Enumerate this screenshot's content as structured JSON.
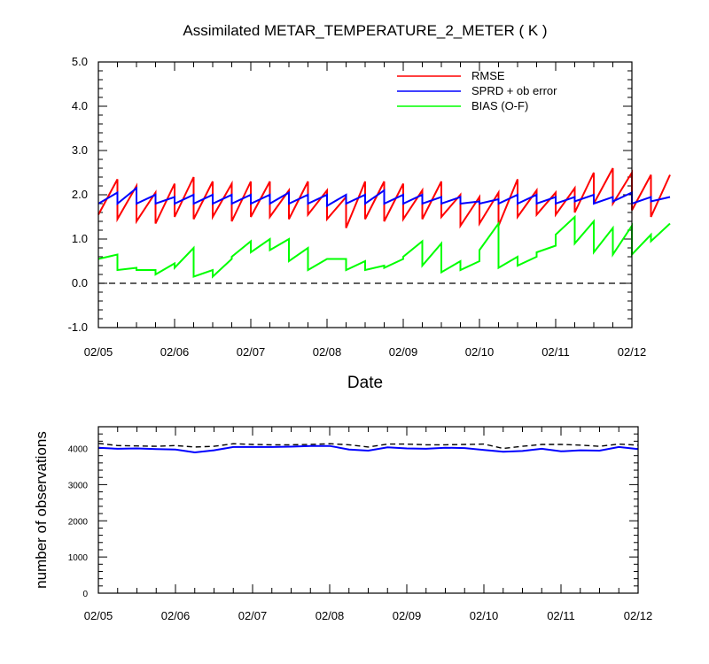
{
  "chart_data": [
    {
      "type": "line",
      "title": "Assimilated METAR_TEMPERATURE_2_METER ( K )",
      "xlabel": "Date",
      "ylabel": "",
      "x_ticklabels": [
        "02/05",
        "02/06",
        "02/07",
        "02/08",
        "02/09",
        "02/10",
        "02/11",
        "02/12"
      ],
      "xlim": [
        0,
        7
      ],
      "ylim": [
        -1.0,
        5.0
      ],
      "y_ticks": [
        -1.0,
        0.0,
        1.0,
        2.0,
        3.0,
        4.0,
        5.0
      ],
      "y_ticklabels": [
        "-1.0",
        "0.0",
        "1.0",
        "2.0",
        "3.0",
        "4.0",
        "5.0"
      ],
      "reference_line": {
        "y": 0.0,
        "style": "dashed"
      },
      "legend_position": "top-right",
      "cycle_days": 0.25,
      "series": [
        {
          "name": "RMSE",
          "color": "#ff0000",
          "prior": [
            1.55,
            1.45,
            1.4,
            1.35,
            1.5,
            1.45,
            1.5,
            1.4,
            1.5,
            1.5,
            1.45,
            1.55,
            1.45,
            1.25,
            1.45,
            1.4,
            1.45,
            1.45,
            1.5,
            1.3,
            1.35,
            1.3,
            1.5,
            1.55,
            1.55,
            1.6,
            1.8,
            1.8,
            1.65,
            1.5
          ],
          "posterior": [
            2.35,
            2.2,
            2.05,
            2.25,
            2.4,
            2.3,
            2.25,
            2.3,
            2.3,
            2.1,
            2.3,
            2.1,
            1.95,
            2.3,
            2.3,
            2.25,
            2.1,
            2.3,
            2.0,
            1.95,
            2.05,
            2.35,
            2.1,
            2.05,
            2.15,
            2.5,
            2.6,
            2.5,
            2.45,
            2.45
          ]
        },
        {
          "name": "SPRD + ob error",
          "color": "#0000ff",
          "prior": [
            1.8,
            1.8,
            1.8,
            1.8,
            1.8,
            1.8,
            1.8,
            1.8,
            1.8,
            1.8,
            1.8,
            1.8,
            1.75,
            1.8,
            1.8,
            1.8,
            1.8,
            1.8,
            1.8,
            1.8,
            1.8,
            1.8,
            1.8,
            1.8,
            1.8,
            1.85,
            1.8,
            1.85,
            1.8,
            1.85
          ],
          "posterior": [
            2.05,
            2.15,
            2.0,
            1.95,
            2.0,
            2.0,
            2.0,
            2.0,
            2.0,
            2.05,
            2.0,
            2.0,
            2.0,
            2.0,
            2.1,
            2.0,
            2.0,
            1.95,
            1.95,
            1.85,
            1.9,
            2.0,
            2.0,
            1.95,
            1.95,
            2.0,
            1.95,
            2.05,
            1.95,
            1.95
          ]
        },
        {
          "name": "BIAS (O-F)",
          "color": "#00ff00",
          "prior": [
            0.55,
            0.3,
            0.3,
            0.2,
            0.35,
            0.15,
            0.15,
            0.6,
            0.7,
            0.75,
            0.5,
            0.3,
            0.55,
            0.3,
            0.3,
            0.35,
            0.6,
            0.4,
            0.25,
            0.3,
            0.75,
            0.35,
            0.4,
            0.7,
            1.1,
            0.9,
            0.7,
            0.65,
            0.65,
            0.95
          ],
          "posterior": [
            0.65,
            0.35,
            0.3,
            0.45,
            0.8,
            0.3,
            0.55,
            0.95,
            1.0,
            1.0,
            0.8,
            0.55,
            0.55,
            0.5,
            0.4,
            0.55,
            0.95,
            0.9,
            0.5,
            0.5,
            1.35,
            0.6,
            0.6,
            0.85,
            1.5,
            1.4,
            1.25,
            1.3,
            1.1,
            1.35
          ]
        }
      ]
    },
    {
      "type": "line",
      "title": "",
      "xlabel": "",
      "ylabel": "number of observations",
      "x_ticklabels": [
        "02/05",
        "02/06",
        "02/07",
        "02/08",
        "02/09",
        "02/10",
        "02/11",
        "02/12"
      ],
      "xlim": [
        0,
        7
      ],
      "ylim": [
        0,
        4600
      ],
      "y_ticks": [
        0,
        1000,
        2000,
        3000,
        4000
      ],
      "y_ticklabels": [
        "0",
        "1000",
        "2000",
        "3000",
        "4000"
      ],
      "series": [
        {
          "name": "",
          "color": "#000000",
          "style": "dashed",
          "x": [
            0,
            0.25,
            0.5,
            0.75,
            1,
            1.25,
            1.5,
            1.75,
            2,
            2.25,
            2.5,
            2.75,
            3,
            3.25,
            3.5,
            3.75,
            4,
            4.25,
            4.5,
            4.75,
            5,
            5.25,
            5.5,
            5.75,
            6,
            6.25,
            6.5,
            6.75,
            7
          ],
          "values": [
            4140,
            4080,
            4070,
            4060,
            4080,
            4040,
            4060,
            4130,
            4110,
            4100,
            4100,
            4110,
            4130,
            4100,
            4040,
            4120,
            4120,
            4100,
            4100,
            4110,
            4120,
            4000,
            4060,
            4110,
            4110,
            4090,
            4060,
            4120,
            4090
          ]
        },
        {
          "name": "",
          "color": "#0000ff",
          "style": "solid",
          "x": [
            0,
            0.25,
            0.5,
            0.75,
            1,
            1.25,
            1.5,
            1.75,
            2,
            2.25,
            2.5,
            2.75,
            3,
            3.25,
            3.5,
            3.75,
            4,
            4.25,
            4.5,
            4.75,
            5,
            5.25,
            5.5,
            5.75,
            6,
            6.25,
            6.5,
            6.75,
            7
          ],
          "values": [
            4020,
            3990,
            4000,
            3980,
            3970,
            3890,
            3950,
            4040,
            4040,
            4040,
            4050,
            4070,
            4070,
            3970,
            3940,
            4030,
            4000,
            3990,
            4020,
            4010,
            3960,
            3910,
            3930,
            3990,
            3920,
            3950,
            3940,
            4040,
            3980
          ]
        }
      ]
    }
  ]
}
